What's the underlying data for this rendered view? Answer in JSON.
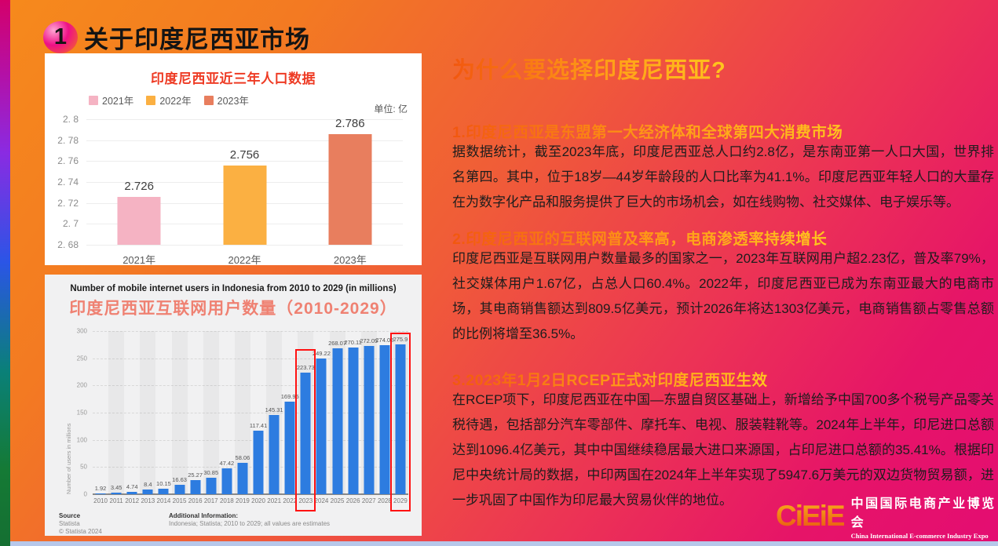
{
  "slide": {
    "badge": "1",
    "title": "关于印度尼西亚市场"
  },
  "chart_data": [
    {
      "type": "bar",
      "title": "印度尼西亚近三年人口数据",
      "unit_label": "单位: 亿",
      "legend": [
        "2021年",
        "2022年",
        "2023年"
      ],
      "colors": [
        "#f5b3c3",
        "#fbb042",
        "#e87e5e"
      ],
      "categories": [
        "2021年",
        "2022年",
        "2023年"
      ],
      "values": [
        2.726,
        2.756,
        2.786
      ],
      "value_labels": [
        "2.726",
        "2.756",
        "2.786"
      ],
      "ylim": [
        2.68,
        2.8
      ],
      "ytick_labels": [
        "2. 8",
        "2. 78",
        "2. 76",
        "2. 74",
        "2. 72",
        "2. 7",
        "2. 68"
      ]
    },
    {
      "type": "bar",
      "title_en": "Number of mobile internet users in Indonesia from 2010 to 2029 (in millions)",
      "title_zh": "印度尼西亚互联网用户数量（2010-2029）",
      "ylabel": "Number of users in millions",
      "bar_color": "#2d7ce0",
      "categories": [
        "2010",
        "2011",
        "2012",
        "2013",
        "2014",
        "2015",
        "2016",
        "2017",
        "2018",
        "2019",
        "2020",
        "2021",
        "2022",
        "2023",
        "2024",
        "2025",
        "2026",
        "2027",
        "2028",
        "2029"
      ],
      "values": [
        1.92,
        3.45,
        4.74,
        8.4,
        10.15,
        16.63,
        25.27,
        30.85,
        47.42,
        58.06,
        117.41,
        145.31,
        169.95,
        223.73,
        249.22,
        268.07,
        270.11,
        272.05,
        274.02,
        275.9
      ],
      "value_labels": [
        "1.92",
        "3.45",
        "4.74",
        "8.4",
        "10.15",
        "16.63",
        "25.27",
        "30.85",
        "47.42",
        "58.06",
        "117.41",
        "145.31",
        "169.95",
        "223.73",
        "249.22",
        "268.07",
        "270.11",
        "272.05",
        "274.02",
        "275.9"
      ],
      "ylim": [
        0,
        300
      ],
      "yticks": [
        0,
        50,
        100,
        150,
        200,
        250,
        300
      ],
      "highlighted_categories": [
        "2023",
        "2029"
      ],
      "source": {
        "label": "Source",
        "name": "Statista",
        "copyright": "© Statista 2024",
        "additional_label": "Additional Information:",
        "additional_text": "Indonesia; Statista; 2010 to 2029; all values are estimates"
      }
    }
  ],
  "right_panel": {
    "heading": "为什么要选择印度尼西亚?",
    "sections": [
      {
        "heading": "1.印度尼西亚是东盟第一大经济体和全球第四大消费市场",
        "body": "据数据统计，截至2023年底，印度尼西亚总人口约2.8亿，是东南亚第一人口大国，世界排名第四。其中，位于18岁—44岁年龄段的人口比率为41.1%。印度尼西亚年轻人口的大量存在为数字化产品和服务提供了巨大的市场机会，如在线购物、社交媒体、电子娱乐等。"
      },
      {
        "heading": "2.印度尼西亚的互联网普及率高，电商渗透率持续增长",
        "body": "印度尼西亚是互联网用户数量最多的国家之一，2023年互联网用户超2.23亿，普及率79%，社交媒体用户1.67亿，占总人口60.4%。2022年，印度尼西亚已成为东南亚最大的电商市场，其电商销售额达到809.5亿美元，预计2026年将达1303亿美元，电商销售额占零售总额的比例将增至36.5%。"
      },
      {
        "heading": "3.2023年1月2日RCEP正式对印度尼西亚生效",
        "body": "在RCEP项下，印度尼西亚在中国—东盟自贸区基础上，新增给予中国700多个税号产品零关税待遇，包括部分汽车零部件、摩托车、电视、服装鞋靴等。2024年上半年，印尼进口总额达到1096.4亿美元，其中中国继续稳居最大进口来源国，占印尼进口总额的35.41%。根据印尼中央统计局的数据，中印两国在2024年上半年实现了5947.6万美元的双边货物贸易额，进一步巩固了中国作为印尼最大贸易伙伴的地位。"
      }
    ]
  },
  "logo": {
    "mark": "CiEiE",
    "name_zh": "中国国际电商产业博览会",
    "name_en": "China International E-commerce Industry Expo"
  }
}
